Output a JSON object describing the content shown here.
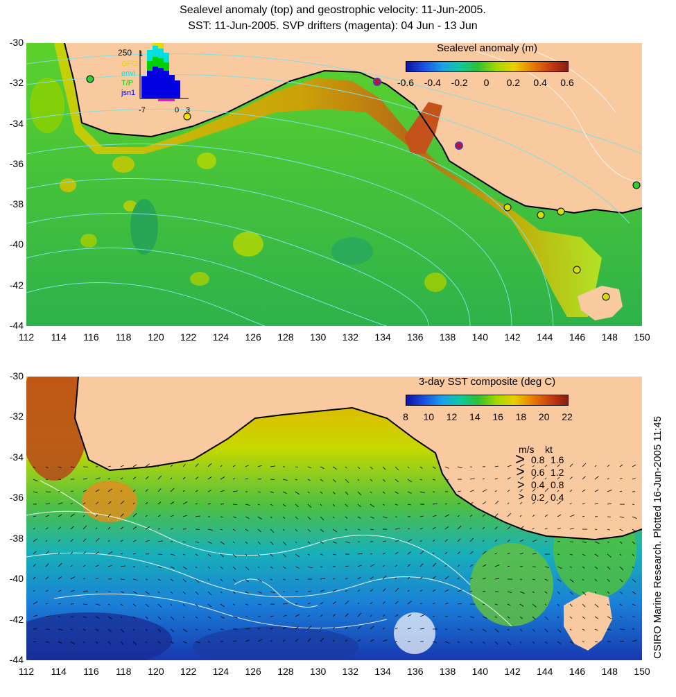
{
  "title": {
    "line1": "Sealevel anomaly (top) and geostrophic velocity: 11-Jun-2005.",
    "line2": "SST: 11-Jun-2005. SVP drifters (magenta): 04 Jun - 13 Jun"
  },
  "axes": {
    "lon_ticks": [
      "112",
      "114",
      "116",
      "118",
      "120",
      "122",
      "124",
      "126",
      "128",
      "130",
      "132",
      "134",
      "136",
      "138",
      "140",
      "142",
      "144",
      "146",
      "148",
      "150"
    ],
    "lat_ticks": [
      "-30",
      "-32",
      "-34",
      "-36",
      "-38",
      "-40",
      "-42",
      "-44"
    ],
    "lon_range": [
      112,
      150
    ],
    "lat_range": [
      -30,
      -44
    ]
  },
  "top_panel": {
    "colorbar_title": "Sealevel anomaly (m)",
    "colorbar_labels": [
      "-0.6",
      "-0.4",
      "-0.2",
      "0",
      "0.2",
      "0.4",
      "0.6"
    ],
    "histogram": {
      "y_top_label": "250",
      "y_mark_label": "1",
      "x_labels": [
        "-7",
        "0",
        "3"
      ],
      "series_labels": [
        {
          "text": "GFO",
          "color": "#e8d800"
        },
        {
          "text": "envi",
          "color": "#00e0e0"
        },
        {
          "text": "T/P",
          "color": "#00d000"
        },
        {
          "text": "jsn1",
          "color": "#0000e0"
        }
      ]
    }
  },
  "bottom_panel": {
    "colorbar_title": "3-day SST composite (deg C)",
    "colorbar_labels": [
      "8",
      "10",
      "12",
      "14",
      "16",
      "18",
      "20",
      "22"
    ],
    "velocity_legend": {
      "header_ms": "m/s",
      "header_kt": "kt",
      "rows": [
        {
          "ms": "0.8",
          "kt": "1.6"
        },
        {
          "ms": "0.6",
          "kt": "1.2"
        },
        {
          "ms": "0.4",
          "kt": "0.8"
        },
        {
          "ms": "0.2",
          "kt": "0.4"
        }
      ]
    }
  },
  "credit": "CSIRO Marine Research. Plotted 16-Jun-2005 11:45",
  "colors": {
    "land": "#f9c9a0",
    "ocean_top": "#3fbf3f",
    "ocean_bottom_warm": "#c8d800",
    "ocean_bottom_cold": "#1a4fd0"
  }
}
